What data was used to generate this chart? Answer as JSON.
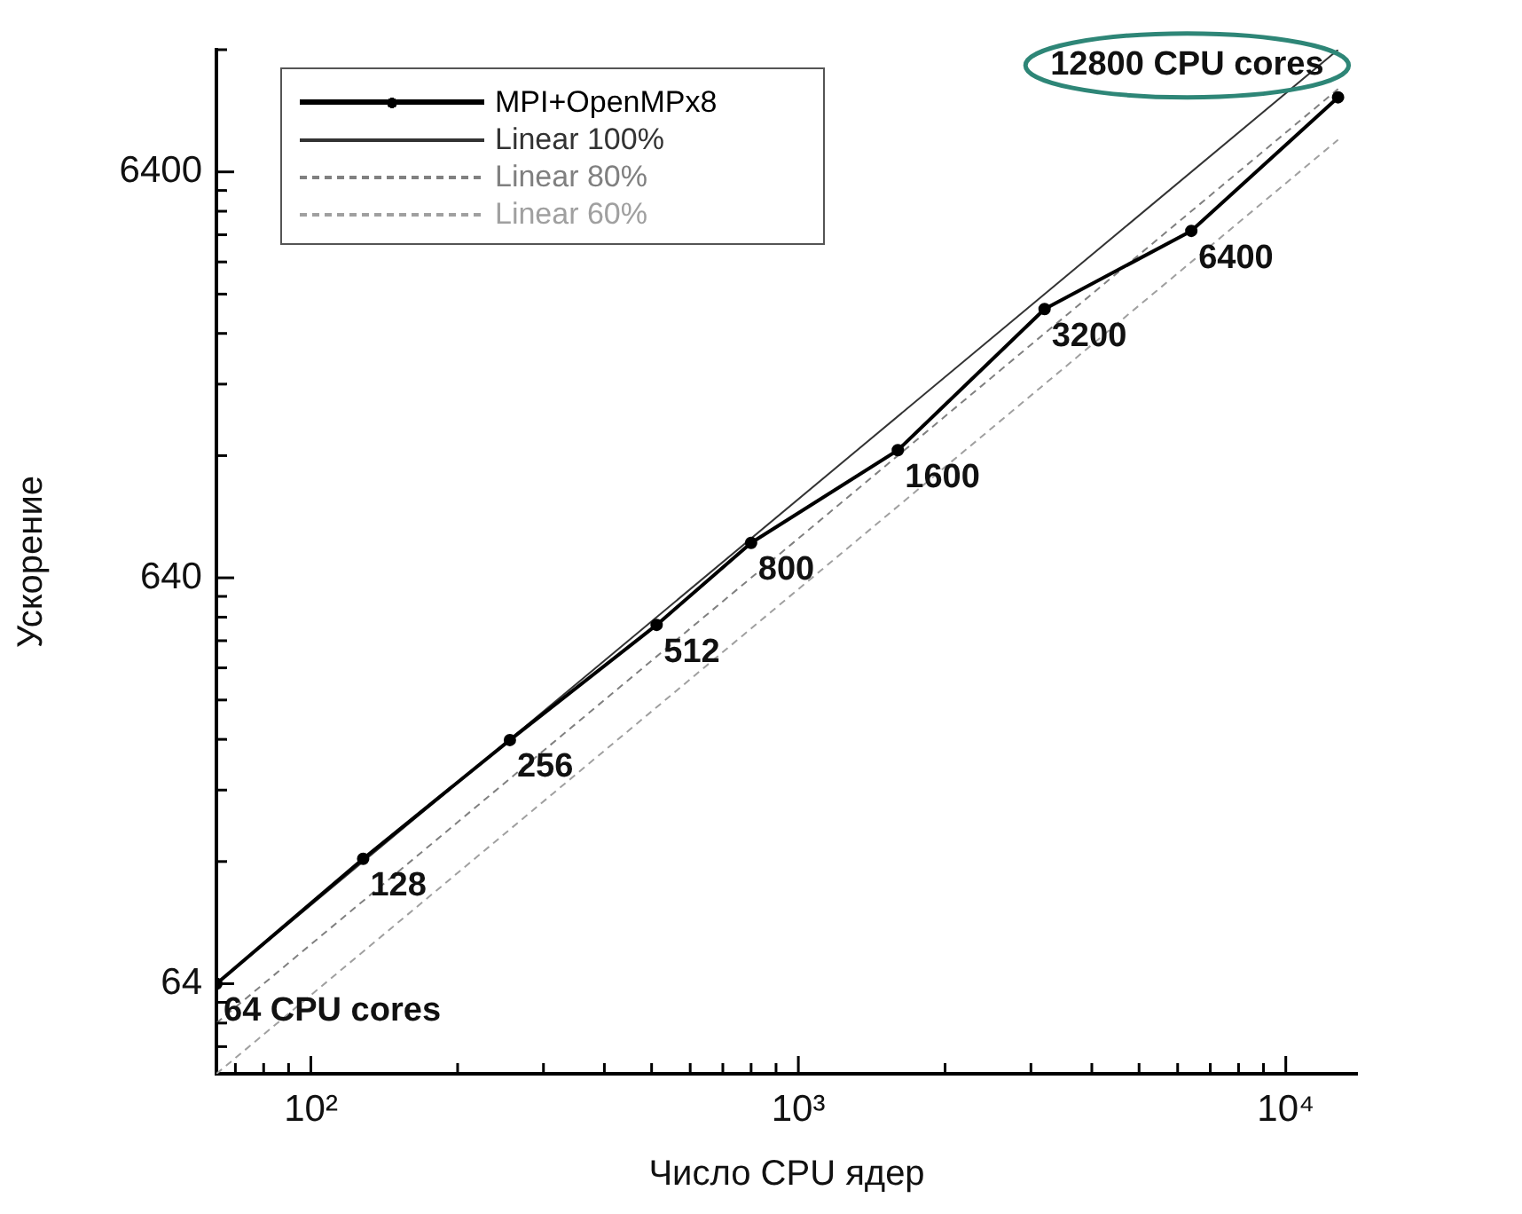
{
  "chart_data": {
    "type": "line",
    "xlabel": "Число CPU ядер",
    "ylabel": "Ускорение",
    "log": "xy",
    "legend": "top left",
    "xlim": [
      64,
      14000
    ],
    "ylim": [
      38.4,
      12800
    ],
    "xticks": [
      {
        "value": 70,
        "label": null
      },
      {
        "value": 80,
        "label": null
      },
      {
        "value": 90,
        "label": null
      },
      {
        "value": 100,
        "label": "10²"
      },
      {
        "value": 200,
        "label": null
      },
      {
        "value": 300,
        "label": null
      },
      {
        "value": 400,
        "label": null
      },
      {
        "value": 500,
        "label": null
      },
      {
        "value": 600,
        "label": null
      },
      {
        "value": 700,
        "label": null
      },
      {
        "value": 800,
        "label": null
      },
      {
        "value": 900,
        "label": null
      },
      {
        "value": 1000,
        "label": "10³"
      },
      {
        "value": 2000,
        "label": null
      },
      {
        "value": 3000,
        "label": null
      },
      {
        "value": 4000,
        "label": null
      },
      {
        "value": 5000,
        "label": null
      },
      {
        "value": 6000,
        "label": null
      },
      {
        "value": 7000,
        "label": null
      },
      {
        "value": 8000,
        "label": null
      },
      {
        "value": 9000,
        "label": null
      },
      {
        "value": 10000,
        "label": "10⁴"
      }
    ],
    "yticks": [
      {
        "value": 44.8,
        "label": null
      },
      {
        "value": 51.2,
        "label": null
      },
      {
        "value": 57.6,
        "label": null
      },
      64,
      {
        "value": 128,
        "label": null
      },
      {
        "value": 192,
        "label": null
      },
      {
        "value": 256,
        "label": null
      },
      {
        "value": 320,
        "label": null
      },
      {
        "value": 384,
        "label": null
      },
      {
        "value": 448,
        "label": null
      },
      {
        "value": 512,
        "label": null
      },
      {
        "value": 576,
        "label": null
      },
      640,
      {
        "value": 1280,
        "label": null
      },
      {
        "value": 1920,
        "label": null
      },
      {
        "value": 2560,
        "label": null
      },
      {
        "value": 3200,
        "label": null
      },
      {
        "value": 3840,
        "label": null
      },
      {
        "value": 4480,
        "label": null
      },
      {
        "value": 5120,
        "label": null
      },
      {
        "value": 5760,
        "label": null
      },
      6400,
      {
        "value": 12800,
        "label": null
      }
    ],
    "series": [
      {
        "name": "MPI+OpenMPx8",
        "color": "#000000",
        "marker": "circle",
        "line_style": "solid",
        "x": [
          64,
          128,
          256,
          512,
          800,
          1600,
          3200,
          6400,
          12800
        ],
        "values": [
          64,
          130,
          255,
          490,
          780,
          1320,
          2940,
          4580,
          9770
        ]
      },
      {
        "name": "Linear 100%",
        "color": "#333333",
        "marker": "none",
        "line_style": "solid",
        "x": [
          64,
          12800
        ],
        "values": [
          64,
          12800
        ]
      },
      {
        "name": "Linear 80%",
        "color": "#808080",
        "marker": "none",
        "line_style": "dashed",
        "x": [
          64,
          12800
        ],
        "values": [
          51.2,
          10240
        ]
      },
      {
        "name": "Linear 60%",
        "color": "#a0a0a0",
        "marker": "none",
        "line_style": "dashed",
        "x": [
          64,
          12800
        ],
        "values": [
          38.4,
          7680
        ]
      }
    ],
    "annotations": [
      {
        "text": "64 CPU cores",
        "x": 64,
        "y": 64
      },
      {
        "text": "128",
        "x": 128,
        "y": 130
      },
      {
        "text": "256",
        "x": 256,
        "y": 255
      },
      {
        "text": "512",
        "x": 512,
        "y": 490
      },
      {
        "text": "800",
        "x": 800,
        "y": 780
      },
      {
        "text": "1600",
        "x": 1600,
        "y": 1320
      },
      {
        "text": "3200",
        "x": 3200,
        "y": 2940
      },
      {
        "text": "6400",
        "x": 6400,
        "y": 4580
      },
      {
        "text": "12800 CPU cores",
        "x": 12800,
        "y": 9770
      }
    ]
  }
}
